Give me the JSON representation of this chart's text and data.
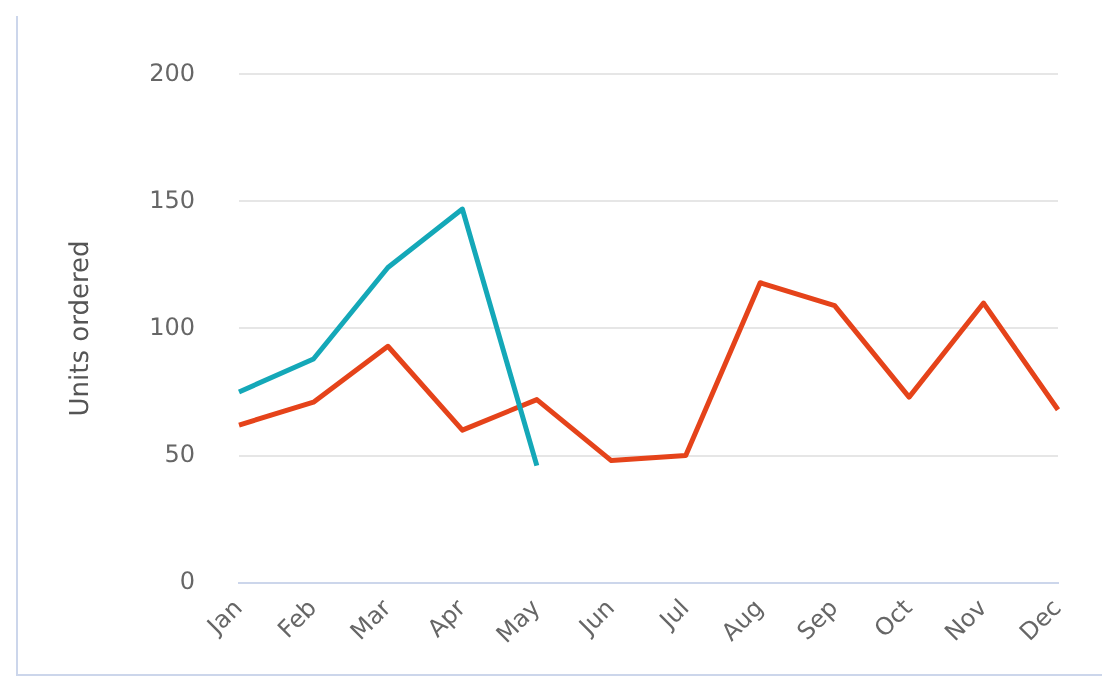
{
  "chart_data": {
    "type": "line",
    "ylabel": "Units ordered",
    "categories": [
      "Jan",
      "Feb",
      "Mar",
      "Apr",
      "May",
      "Jun",
      "Jul",
      "Aug",
      "Sep",
      "Oct",
      "Nov",
      "Dec"
    ],
    "series": [
      {
        "color": "#14a8b8",
        "values": [
          75,
          88,
          124,
          147,
          46,
          null,
          null,
          null,
          null,
          null,
          null,
          null
        ]
      },
      {
        "color": "#e5431a",
        "values": [
          62,
          71,
          93,
          60,
          72,
          48,
          50,
          118,
          109,
          73,
          110,
          68
        ]
      }
    ],
    "ylim": [
      0,
      200
    ],
    "yticks": [
      0,
      50,
      100,
      150,
      200
    ],
    "grid": "y",
    "legend": false,
    "marker": "none",
    "line_style": "solid"
  }
}
